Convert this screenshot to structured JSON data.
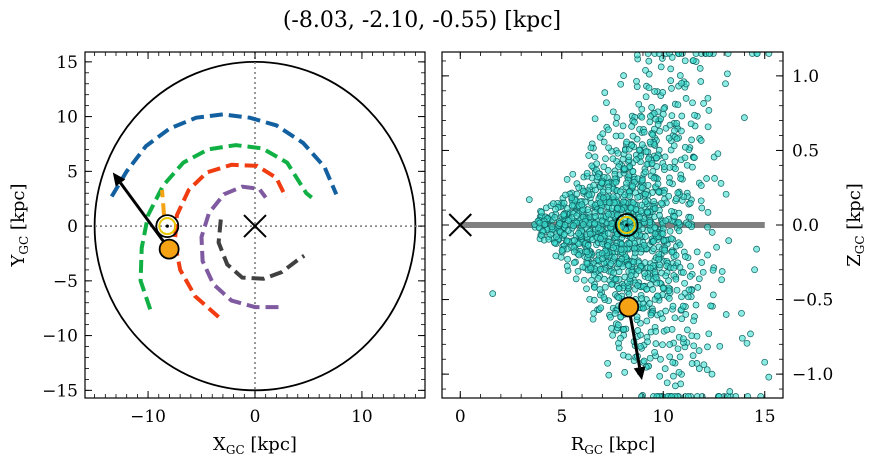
{
  "title": "(-8.03, -2.10, -0.55) [kpc]",
  "chart_data": [
    {
      "type": "line",
      "panel": "left",
      "xlabel": "X_GC [kpc]",
      "ylabel": "Y_GC [kpc]",
      "xlim": [
        -15.9,
        15.9
      ],
      "ylim": [
        -15.7,
        15.9
      ],
      "xticks": [
        -10,
        0,
        10
      ],
      "yticks": [
        -15,
        -10,
        -5,
        0,
        5,
        10,
        15
      ],
      "xtick_labels": [
        "−10",
        "0",
        "10"
      ],
      "ytick_labels": [
        "−15",
        "−10",
        "−5",
        "0",
        "5",
        "10",
        "15"
      ],
      "grid": false,
      "boundary_circle_radius": 15,
      "center_marker": {
        "x": 0,
        "y": 0,
        "symbol": "x"
      },
      "sun": {
        "x": -8.2,
        "y": 0.0,
        "symbol": "circled-dot",
        "color": "#e8c800"
      },
      "star": {
        "x": -8.03,
        "y": -2.1,
        "color": "#f5a314"
      },
      "velocity_arrow": {
        "from": [
          -8.03,
          -2.1
        ],
        "to": [
          -13.3,
          4.9
        ],
        "color": "#000000"
      },
      "spiral_arms": [
        {
          "color": "#1360a0",
          "points": [
            [
              -13.4,
              2.7
            ],
            [
              -12.0,
              5.0
            ],
            [
              -10.2,
              7.3
            ],
            [
              -8.0,
              8.9
            ],
            [
              -5.5,
              9.9
            ],
            [
              -3.0,
              10.2
            ],
            [
              -0.5,
              9.9
            ],
            [
              2.0,
              9.2
            ],
            [
              4.5,
              7.6
            ],
            [
              6.5,
              5.4
            ],
            [
              7.6,
              2.9
            ]
          ]
        },
        {
          "color": "#10b045",
          "points": [
            [
              -9.8,
              -7.6
            ],
            [
              -10.7,
              -5.0
            ],
            [
              -10.6,
              -2.0
            ],
            [
              -10.0,
              1.0
            ],
            [
              -8.6,
              3.7
            ],
            [
              -6.7,
              5.8
            ],
            [
              -4.4,
              7.0
            ],
            [
              -1.8,
              7.4
            ],
            [
              0.7,
              7.1
            ],
            [
              3.0,
              5.8
            ],
            [
              4.8,
              3.0
            ],
            [
              5.3,
              2.6
            ]
          ]
        },
        {
          "color": "#f03c10",
          "points": [
            [
              -3.4,
              -8.3
            ],
            [
              -5.6,
              -6.4
            ],
            [
              -7.0,
              -4.0
            ],
            [
              -7.5,
              -1.5
            ],
            [
              -7.3,
              1.0
            ],
            [
              -6.2,
              3.3
            ],
            [
              -4.5,
              4.9
            ],
            [
              -2.2,
              5.6
            ],
            [
              0.2,
              5.5
            ],
            [
              2.0,
              4.4
            ],
            [
              2.9,
              2.6
            ]
          ]
        },
        {
          "color": "#7f5aa0",
          "points": [
            [
              2.2,
              -7.4
            ],
            [
              0.0,
              -7.4
            ],
            [
              -2.2,
              -6.8
            ],
            [
              -3.9,
              -5.3
            ],
            [
              -4.9,
              -3.2
            ],
            [
              -5.0,
              -1.0
            ],
            [
              -4.3,
              1.2
            ],
            [
              -2.9,
              2.9
            ],
            [
              -1.2,
              3.6
            ],
            [
              0.4,
              3.4
            ],
            [
              1.0,
              2.6
            ]
          ]
        },
        {
          "color": "#404040",
          "points": [
            [
              -3.2,
              0.6
            ],
            [
              -3.4,
              -1.5
            ],
            [
              -2.6,
              -3.5
            ],
            [
              -1.2,
              -4.7
            ],
            [
              0.8,
              -4.8
            ],
            [
              2.5,
              -4.2
            ],
            [
              4.0,
              -3.1
            ],
            [
              4.6,
              -2.7
            ]
          ]
        },
        {
          "color": "#f5a314",
          "points": [
            [
              -8.5,
              0.9
            ],
            [
              -8.6,
              2.1
            ],
            [
              -8.7,
              3.3
            ]
          ]
        }
      ]
    },
    {
      "type": "scatter",
      "panel": "right",
      "xlabel": "R_GC [kpc]",
      "ylabel": "Z_GC [kpc]",
      "xlim": [
        -0.9,
        15.9
      ],
      "ylim": [
        -1.16,
        1.16
      ],
      "xticks": [
        0,
        5,
        10,
        15
      ],
      "yticks": [
        -1.0,
        -0.5,
        0.0,
        0.5,
        1.0
      ],
      "xtick_labels": [
        "0",
        "5",
        "10",
        "15"
      ],
      "ytick_labels": [
        "−1.0",
        "−0.5",
        "0.0",
        "0.5",
        "1.0"
      ],
      "yaxis_side": "right",
      "grid": false,
      "scatter_color": "#3ce0d0",
      "disk_line": {
        "x": [
          0,
          15
        ],
        "y": 0,
        "color": "#808080"
      },
      "center_marker": {
        "x": 0,
        "y": 0,
        "symbol": "x"
      },
      "sun": {
        "x": 8.2,
        "y": 0.0,
        "symbol": "circled-dot",
        "color": "#e8c800"
      },
      "star": {
        "x": 8.3,
        "y": -0.55,
        "color": "#f5a314"
      },
      "velocity_arrow": {
        "from": [
          8.3,
          -0.55
        ],
        "to": [
          8.95,
          -1.04
        ],
        "color": "#000000"
      },
      "outliers": [
        [
          1.6,
          -0.46
        ],
        [
          3.4,
          0.17
        ],
        [
          9.9,
          1.06
        ],
        [
          12.2,
          0.85
        ],
        [
          14.0,
          0.72
        ],
        [
          15.2,
          -1.02
        ],
        [
          14.3,
          -0.73
        ],
        [
          12.4,
          -1.0
        ],
        [
          11.5,
          -0.81
        ],
        [
          13.1,
          -0.6
        ],
        [
          10.9,
          0.95
        ],
        [
          9.3,
          0.92
        ],
        [
          7.2,
          0.82
        ],
        [
          15.0,
          -0.92
        ],
        [
          14.5,
          -0.3
        ]
      ]
    }
  ]
}
